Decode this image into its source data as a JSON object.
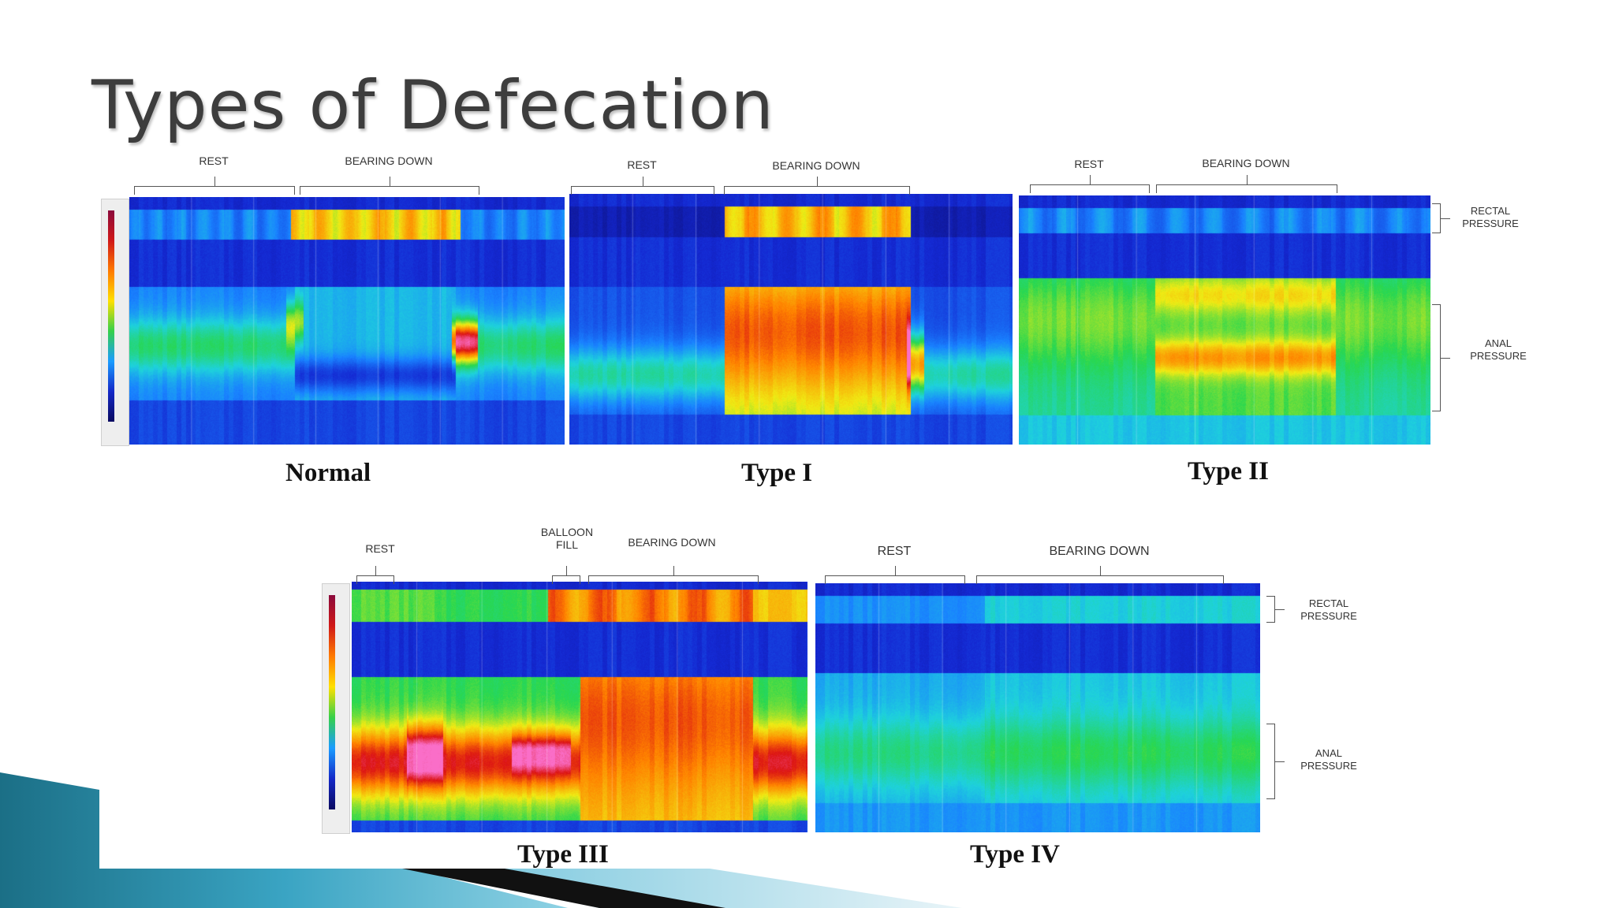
{
  "slide": {
    "title": "Types of Defecation"
  },
  "labels": {
    "rest": "REST",
    "bearing_down": "BEARING DOWN",
    "balloon_fill": "BALLOON FILL",
    "rectal_pressure": "RECTAL PRESSURE",
    "anal_pressure": "ANAL PRESSURE"
  },
  "panels": [
    {
      "caption": "Normal"
    },
    {
      "caption": "Type I"
    },
    {
      "caption": "Type II"
    },
    {
      "caption": "Type III"
    },
    {
      "caption": "Type IV"
    }
  ],
  "colors": {
    "title": "#3d3d3d",
    "map_background": "#1428c8",
    "deco_teal": "#1f7f98",
    "deco_dark": "#111111"
  }
}
